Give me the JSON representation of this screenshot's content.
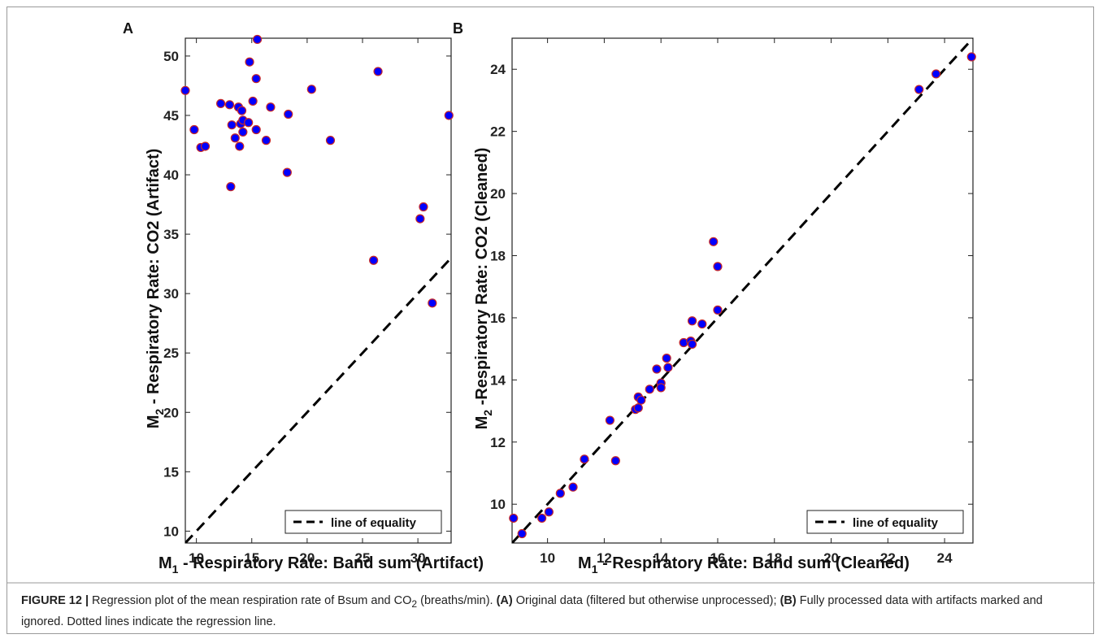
{
  "chart_data": [
    {
      "type": "scatter",
      "panel_label": "A",
      "xlabel_main": "M",
      "xlabel_sub": "1",
      "xlabel_rest": " - Respiratory Rate: Band sum (Artifact)",
      "ylabel_main": "M",
      "ylabel_sub": "2",
      "ylabel_rest": " - Respiratory Rate: CO2 (Artifact)",
      "xlim": [
        9,
        33
      ],
      "ylim": [
        9,
        51.5
      ],
      "xticks": [
        10,
        15,
        20,
        25,
        30
      ],
      "yticks": [
        10,
        15,
        20,
        25,
        30,
        35,
        40,
        45,
        50
      ],
      "legend": {
        "label": "line of equality",
        "position": "bottom-right"
      },
      "reference_line": {
        "name": "line of equality",
        "style": "dashed"
      },
      "marker_fill": "#0000ff",
      "marker_edge": "#c62828",
      "points": [
        [
          9.0,
          47.1
        ],
        [
          9.8,
          43.8
        ],
        [
          10.4,
          42.3
        ],
        [
          10.8,
          42.4
        ],
        [
          12.2,
          46.0
        ],
        [
          13.0,
          45.9
        ],
        [
          13.1,
          39.0
        ],
        [
          13.2,
          44.2
        ],
        [
          13.5,
          43.1
        ],
        [
          13.8,
          45.7
        ],
        [
          13.9,
          42.4
        ],
        [
          14.0,
          44.3
        ],
        [
          14.1,
          45.4
        ],
        [
          14.2,
          44.6
        ],
        [
          14.2,
          43.6
        ],
        [
          14.7,
          44.4
        ],
        [
          14.8,
          49.5
        ],
        [
          15.1,
          46.2
        ],
        [
          15.4,
          43.8
        ],
        [
          15.4,
          48.1
        ],
        [
          15.5,
          51.4
        ],
        [
          16.3,
          42.9
        ],
        [
          16.7,
          45.7
        ],
        [
          18.2,
          40.2
        ],
        [
          18.3,
          45.1
        ],
        [
          20.4,
          47.2
        ],
        [
          22.1,
          42.9
        ],
        [
          26.0,
          32.8
        ],
        [
          26.4,
          48.7
        ],
        [
          30.2,
          36.3
        ],
        [
          30.5,
          37.3
        ],
        [
          31.3,
          29.2
        ],
        [
          32.8,
          45.0
        ]
      ]
    },
    {
      "type": "scatter",
      "panel_label": "B",
      "xlabel_main": "M",
      "xlabel_sub": "1",
      "xlabel_rest": " - Respiratory Rate: Band sum (Cleaned)",
      "ylabel_main": "M",
      "ylabel_sub": "2",
      "ylabel_rest": " -Respiratory Rate: CO2 (Cleaned)",
      "xlim": [
        8.75,
        25
      ],
      "ylim": [
        8.75,
        25
      ],
      "xticks": [
        10,
        12,
        14,
        16,
        18,
        20,
        22,
        24
      ],
      "yticks": [
        10,
        12,
        14,
        16,
        18,
        20,
        22,
        24
      ],
      "legend": {
        "label": "line of equality",
        "position": "bottom-right"
      },
      "reference_line": {
        "name": "line of equality",
        "style": "dashed"
      },
      "marker_fill": "#0000ff",
      "marker_edge": "#c62828",
      "points": [
        [
          8.8,
          9.55
        ],
        [
          9.1,
          9.05
        ],
        [
          9.8,
          9.55
        ],
        [
          10.05,
          9.75
        ],
        [
          10.45,
          10.35
        ],
        [
          10.9,
          10.55
        ],
        [
          11.3,
          11.45
        ],
        [
          12.2,
          12.7
        ],
        [
          12.4,
          11.4
        ],
        [
          13.1,
          13.05
        ],
        [
          13.2,
          13.45
        ],
        [
          13.2,
          13.1
        ],
        [
          13.3,
          13.35
        ],
        [
          13.6,
          13.7
        ],
        [
          13.85,
          14.35
        ],
        [
          14.0,
          13.9
        ],
        [
          14.0,
          13.75
        ],
        [
          14.2,
          14.7
        ],
        [
          14.25,
          14.4
        ],
        [
          14.8,
          15.2
        ],
        [
          15.05,
          15.25
        ],
        [
          15.1,
          15.15
        ],
        [
          15.1,
          15.9
        ],
        [
          15.45,
          15.8
        ],
        [
          15.85,
          18.45
        ],
        [
          16.0,
          17.65
        ],
        [
          16.0,
          16.25
        ],
        [
          23.1,
          23.35
        ],
        [
          23.7,
          23.85
        ],
        [
          24.95,
          24.4
        ]
      ]
    }
  ],
  "caption": {
    "figure_label": "FIGURE 12 |",
    "text_1": " Regression plot of the mean respiration rate of Bsum and CO",
    "sub": "2",
    "text_2": " (breaths/min). ",
    "bold_a": "(A)",
    "text_3": " Original data (filtered but otherwise unprocessed); ",
    "bold_b": "(B)",
    "text_4": " Fully processed data with artifacts marked and ignored. Dotted lines indicate the regression line."
  }
}
